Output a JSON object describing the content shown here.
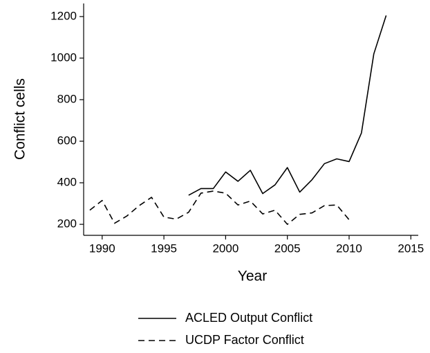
{
  "chart_data": {
    "type": "line",
    "x_label": "Year",
    "y_label": "Conflict cells",
    "x": [
      1989,
      1990,
      1991,
      1992,
      1993,
      1994,
      1995,
      1996,
      1997,
      1998,
      1999,
      2000,
      2001,
      2002,
      2003,
      2004,
      2005,
      2006,
      2007,
      2008,
      2009,
      2010,
      2011,
      2012,
      2013
    ],
    "series": [
      {
        "name": "ACLED Output Conflict",
        "color": "#000000",
        "dash": "solid",
        "values": [
          null,
          null,
          null,
          null,
          null,
          null,
          null,
          null,
          340,
          372,
          372,
          452,
          407,
          460,
          348,
          390,
          473,
          355,
          415,
          492,
          515,
          502,
          640,
          1020,
          1205
        ]
      },
      {
        "name": "UCDP Factor Conflict",
        "color": "#000000",
        "dash": "dashed",
        "values": [
          268,
          315,
          205,
          240,
          290,
          330,
          235,
          225,
          258,
          350,
          360,
          350,
          293,
          312,
          250,
          268,
          200,
          248,
          255,
          290,
          293,
          222,
          null,
          null,
          null
        ]
      }
    ],
    "xlim": [
      1988.5,
      2015.6
    ],
    "xticks": [
      1990,
      1995,
      2000,
      2005,
      2010,
      2015
    ],
    "ylim": [
      147,
      1263
    ],
    "yticks": [
      200,
      400,
      600,
      800,
      1000,
      1200
    ]
  }
}
